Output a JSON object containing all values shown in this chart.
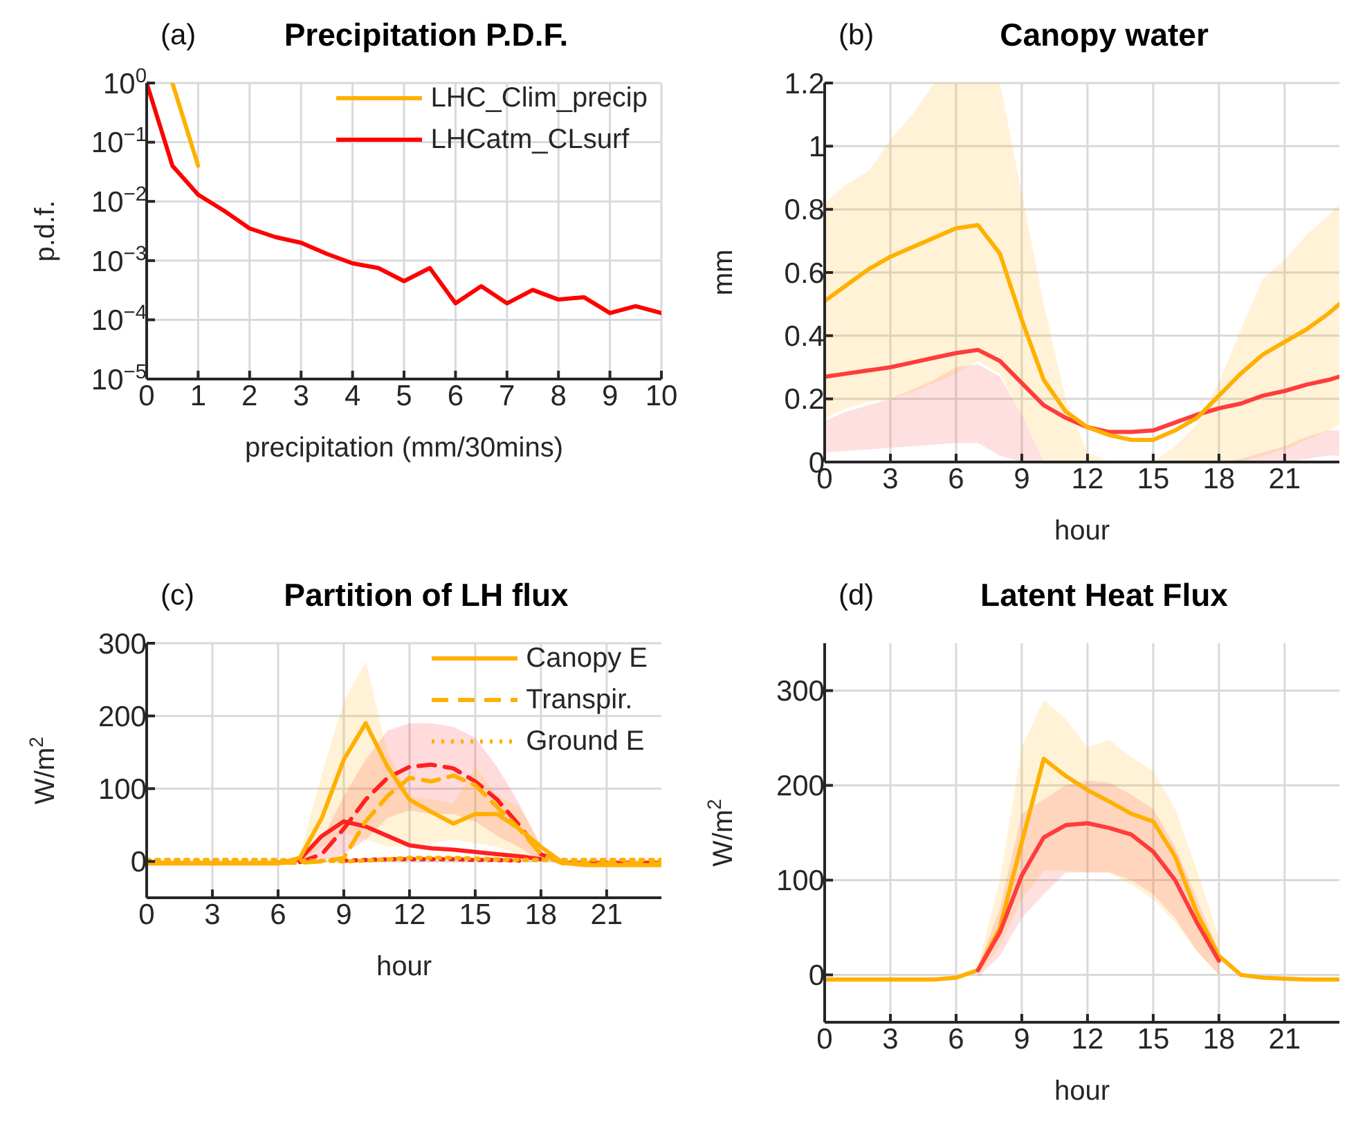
{
  "chart_data": [
    {
      "type": "line",
      "title": "Precipitation P.D.F.",
      "annotations": [
        "(a)"
      ],
      "xlabel": "precipitation (mm/30mins)",
      "ylabel": "p.d.f.",
      "log": "y",
      "grid": true,
      "legend": "top right",
      "x": [
        0,
        0.5,
        1,
        1.5,
        2,
        2.5,
        3,
        3.5,
        4,
        4.5,
        5,
        5.5,
        6,
        6.5,
        7,
        7.5,
        8,
        8.5,
        9,
        9.5,
        10
      ],
      "xlim": [
        0,
        10
      ],
      "xticks": [
        0,
        1,
        2,
        3,
        4,
        5,
        6,
        7,
        8,
        9,
        10
      ],
      "ylim": [
        1e-05,
        1
      ],
      "yticks": [
        {
          "value": 1e-05,
          "label": "10$^{−5}$"
        },
        {
          "value": 0.0001,
          "label": "10$^{−4}$"
        },
        {
          "value": 0.001,
          "label": "10$^{−3}$"
        },
        {
          "value": 0.01,
          "label": "10$^{−2}$"
        },
        {
          "value": 0.1,
          "label": "10$^{−1}$"
        },
        {
          "value": 1,
          "label": "10$^{0}$"
        }
      ],
      "series": [
        {
          "name": "LHC_Clim_precip",
          "color": "#ffb000",
          "values": [
            null,
            1,
            0.04,
            null,
            null,
            null,
            null,
            null,
            null,
            null,
            null,
            null,
            null,
            null,
            null,
            null,
            null,
            null,
            null,
            null,
            null
          ]
        },
        {
          "name": "LHCatm_CLsurf",
          "color": "#ff0000",
          "values": [
            1,
            0.04,
            0.013,
            0.007,
            0.0035,
            0.0025,
            0.002,
            0.0013,
            0.0009,
            0.00075,
            0.00045,
            0.00075,
            0.00019,
            0.00037,
            0.00019,
            0.00032,
            0.00022,
            0.00024,
            0.00013,
            0.00017,
            0.00013
          ]
        }
      ]
    },
    {
      "type": "line",
      "title": "Canopy water",
      "annotations": [
        "(b)"
      ],
      "xlabel": "hour",
      "ylabel": "mm",
      "grid": true,
      "x": [
        0,
        1,
        2,
        3,
        4,
        5,
        6,
        7,
        8,
        9,
        10,
        11,
        12,
        13,
        14,
        15,
        16,
        17,
        18,
        19,
        20,
        21,
        22,
        23,
        23.5
      ],
      "xlim": [
        0,
        23.5
      ],
      "xticks": [
        0,
        3,
        6,
        9,
        12,
        15,
        18,
        21
      ],
      "ylim": [
        0,
        1.2
      ],
      "yticks": [
        0,
        0.2,
        0.4,
        0.6,
        0.8,
        1,
        1.2
      ],
      "series": [
        {
          "color": "#ff3c3c",
          "values": [
            0.27,
            0.28,
            0.29,
            0.3,
            0.315,
            0.33,
            0.345,
            0.355,
            0.32,
            0.25,
            0.18,
            0.14,
            0.11,
            0.095,
            0.095,
            0.1,
            0.125,
            0.15,
            0.17,
            0.185,
            0.21,
            0.225,
            0.245,
            0.26,
            0.27
          ],
          "lower": [
            0.03,
            0.035,
            0.04,
            0.045,
            0.05,
            0.055,
            0.06,
            0.06,
            0.02,
            0,
            0,
            0,
            0,
            0,
            0,
            0,
            0,
            0,
            0,
            0,
            0,
            0,
            0.01,
            0.02,
            0.02
          ],
          "upper": [
            0.13,
            0.16,
            0.18,
            0.2,
            0.23,
            0.26,
            0.3,
            0.31,
            0.27,
            0.15,
            0,
            0,
            0,
            0,
            0,
            0,
            0,
            0,
            0,
            0.01,
            0.03,
            0.05,
            0.08,
            0.1,
            0.1
          ]
        },
        {
          "color": "#ffb000",
          "values": [
            0.51,
            0.56,
            0.61,
            0.65,
            0.68,
            0.71,
            0.74,
            0.75,
            0.66,
            0.45,
            0.26,
            0.16,
            0.11,
            0.085,
            0.07,
            0.07,
            0.1,
            0.14,
            0.21,
            0.28,
            0.34,
            0.38,
            0.42,
            0.47,
            0.5
          ],
          "lower": [
            0.14,
            0.17,
            0.19,
            0.2,
            0.22,
            0.25,
            0.28,
            0.32,
            0.28,
            0.15,
            0,
            0,
            0,
            0,
            0,
            0,
            0,
            0,
            0,
            0,
            0.02,
            0.04,
            0.07,
            0.1,
            0.12
          ],
          "upper": [
            0.82,
            0.88,
            0.92,
            1.02,
            1.1,
            1.2,
            1.2,
            1.2,
            1.2,
            0.85,
            0.5,
            0.2,
            0.03,
            0,
            0,
            0,
            0.05,
            0.12,
            0.25,
            0.42,
            0.58,
            0.64,
            0.72,
            0.78,
            0.82
          ]
        }
      ]
    },
    {
      "type": "line",
      "title": "Partition of LH flux",
      "annotations": [
        "(c)"
      ],
      "xlabel": "hour",
      "ylabel": "W/m$^{2}$",
      "grid": true,
      "legend": "top right",
      "x": [
        0,
        1,
        2,
        3,
        4,
        5,
        6,
        7,
        8,
        9,
        10,
        11,
        12,
        13,
        14,
        15,
        16,
        17,
        18,
        19,
        20,
        21,
        22,
        23,
        23.5
      ],
      "xlim": [
        0,
        23.5
      ],
      "xticks": [
        0,
        3,
        6,
        9,
        12,
        15,
        18,
        21
      ],
      "ylim": [
        -50,
        300
      ],
      "yticks": [
        0,
        100,
        200,
        300
      ],
      "series": [
        {
          "color": "#ff2020",
          "values": [
            null,
            null,
            null,
            null,
            null,
            null,
            null,
            -1,
            10,
            45,
            85,
            115,
            130,
            133,
            128,
            110,
            85,
            50,
            10,
            -2,
            -2,
            -2,
            -2,
            -2,
            -2
          ],
          "line_style": "dashed",
          "lower": [
            null,
            null,
            null,
            null,
            null,
            null,
            null,
            -2,
            0,
            10,
            30,
            60,
            70,
            65,
            65,
            55,
            35,
            20,
            0,
            null,
            null,
            null,
            null,
            null,
            null
          ],
          "upper": [
            null,
            null,
            null,
            null,
            null,
            null,
            null,
            0,
            30,
            90,
            140,
            180,
            190,
            190,
            185,
            170,
            130,
            80,
            20,
            null,
            null,
            null,
            null,
            null,
            null
          ]
        },
        {
          "color": "#ff2020",
          "values": [
            null,
            null,
            null,
            null,
            null,
            null,
            -2,
            3,
            35,
            55,
            48,
            35,
            22,
            18,
            16,
            13,
            10,
            7,
            3,
            null,
            null,
            null,
            null,
            null,
            null
          ]
        },
        {
          "color": "#ff2020",
          "values": [
            null,
            null,
            null,
            null,
            null,
            null,
            null,
            null,
            null,
            1,
            2,
            3,
            3,
            3,
            3,
            2,
            2,
            1,
            null,
            null,
            null,
            null,
            null,
            null,
            null
          ],
          "line_style": "dotted"
        },
        {
          "name": "Canopy E",
          "color": "#ffb000",
          "values": [
            -3,
            -3,
            -3,
            -3,
            -3,
            -3,
            -3,
            5,
            60,
            140,
            190,
            130,
            85,
            68,
            52,
            65,
            65,
            45,
            20,
            -2,
            -5,
            -5,
            -5,
            -5,
            -5
          ],
          "lower": [
            null,
            null,
            null,
            null,
            null,
            null,
            null,
            0,
            20,
            40,
            30,
            20,
            20,
            25,
            30,
            25,
            20,
            10,
            0,
            null,
            null,
            null,
            null,
            null,
            null
          ],
          "upper": [
            null,
            null,
            null,
            null,
            null,
            null,
            null,
            10,
            120,
            220,
            275,
            150,
            90,
            85,
            80,
            130,
            90,
            75,
            25,
            null,
            null,
            null,
            null,
            null,
            null
          ]
        },
        {
          "name": "Transpir.",
          "color": "#ffb000",
          "values": [
            -2,
            -2,
            -2,
            -2,
            -2,
            -2,
            -2,
            -2,
            0,
            5,
            55,
            90,
            115,
            110,
            118,
            105,
            75,
            45,
            10,
            -3,
            -3,
            -3,
            -3,
            -3,
            -3
          ],
          "line_style": "dashed"
        },
        {
          "name": "Ground E",
          "color": "#ffb000",
          "values": [
            2,
            2,
            2,
            2,
            2,
            2,
            2,
            1,
            1,
            0,
            1,
            3,
            5,
            5,
            5,
            4,
            3,
            2,
            2,
            2,
            2,
            2,
            2,
            2,
            2
          ],
          "line_style": "dotted"
        }
      ]
    },
    {
      "type": "line",
      "title": "Latent Heat Flux",
      "annotations": [
        "(d)"
      ],
      "xlabel": "hour",
      "ylabel": "W/m$^{2}$",
      "grid": true,
      "x": [
        0,
        1,
        2,
        3,
        4,
        5,
        6,
        7,
        8,
        9,
        10,
        11,
        12,
        13,
        14,
        15,
        16,
        17,
        18,
        19,
        20,
        21,
        22,
        23,
        23.5
      ],
      "xlim": [
        0,
        23.5
      ],
      "xticks": [
        0,
        3,
        6,
        9,
        12,
        15,
        18,
        21
      ],
      "ylim": [
        -50,
        350
      ],
      "yticks": [
        0,
        100,
        200,
        300
      ],
      "series": [
        {
          "color": "#ffb000",
          "values": [
            -5,
            -5,
            -5,
            -5,
            -5,
            -5,
            -3,
            5,
            50,
            140,
            228,
            210,
            195,
            183,
            170,
            162,
            125,
            65,
            20,
            0,
            -3,
            -4,
            -5,
            -5,
            -5
          ],
          "lower": [
            null,
            null,
            null,
            null,
            null,
            null,
            null,
            0,
            30,
            80,
            110,
            110,
            108,
            108,
            95,
            80,
            55,
            25,
            0,
            null,
            null,
            null,
            null,
            null,
            null
          ],
          "upper": [
            null,
            null,
            null,
            null,
            null,
            null,
            null,
            10,
            100,
            240,
            290,
            270,
            240,
            248,
            230,
            215,
            175,
            110,
            40,
            null,
            null,
            null,
            null,
            null,
            null
          ]
        },
        {
          "color": "#ff3c3c",
          "values": [
            null,
            null,
            null,
            null,
            null,
            null,
            null,
            5,
            45,
            105,
            145,
            158,
            160,
            155,
            148,
            130,
            100,
            55,
            15,
            null,
            null,
            null,
            null,
            null,
            null
          ],
          "lower": [
            null,
            null,
            null,
            null,
            null,
            null,
            null,
            -3,
            20,
            60,
            85,
            108,
            108,
            108,
            100,
            85,
            60,
            25,
            0,
            null,
            null,
            null,
            null,
            null,
            null
          ],
          "upper": [
            null,
            null,
            null,
            null,
            null,
            null,
            null,
            8,
            70,
            170,
            185,
            200,
            205,
            203,
            190,
            175,
            135,
            80,
            25,
            null,
            null,
            null,
            null,
            null,
            null
          ]
        }
      ]
    }
  ]
}
